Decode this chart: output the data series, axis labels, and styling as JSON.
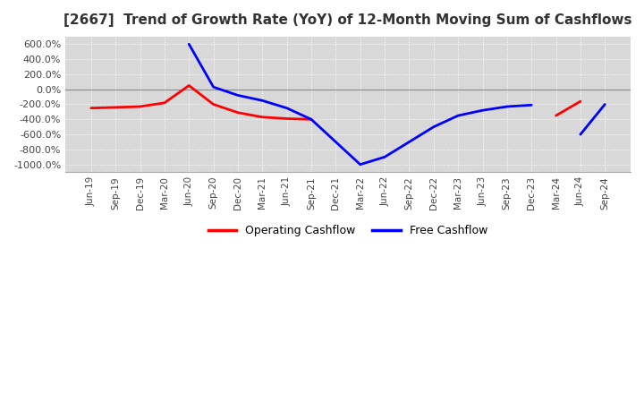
{
  "title": "[2667]  Trend of Growth Rate (YoY) of 12-Month Moving Sum of Cashflows",
  "title_fontsize": 11,
  "background_color": "#ffffff",
  "plot_background_color": "#d8d8d8",
  "grid_color": "#ffffff",
  "ylim": [
    -1100,
    700
  ],
  "yticks": [
    600,
    400,
    200,
    0,
    -200,
    -400,
    -600,
    -800,
    -1000
  ],
  "legend_labels": [
    "Operating Cashflow",
    "Free Cashflow"
  ],
  "legend_colors": [
    "#ff0000",
    "#0000ff"
  ],
  "x_labels": [
    "Jun-19",
    "Sep-19",
    "Dec-19",
    "Mar-20",
    "Jun-20",
    "Sep-20",
    "Dec-20",
    "Mar-21",
    "Jun-21",
    "Sep-21",
    "Dec-21",
    "Mar-22",
    "Jun-22",
    "Sep-22",
    "Dec-22",
    "Mar-23",
    "Jun-23",
    "Sep-23",
    "Dec-23",
    "Mar-24",
    "Jun-24",
    "Sep-24"
  ],
  "operating_cashflow": [
    -250,
    -240,
    -230,
    -180,
    50,
    -200,
    -310,
    -370,
    -390,
    -400,
    null,
    null,
    null,
    null,
    null,
    null,
    null,
    null,
    null,
    -350,
    -160,
    null
  ],
  "free_cashflow": [
    null,
    null,
    null,
    null,
    600,
    30,
    -80,
    -150,
    -250,
    -400,
    -700,
    -1000,
    -900,
    -700,
    -500,
    -350,
    -280,
    -230,
    -210,
    null,
    -600,
    -200
  ]
}
